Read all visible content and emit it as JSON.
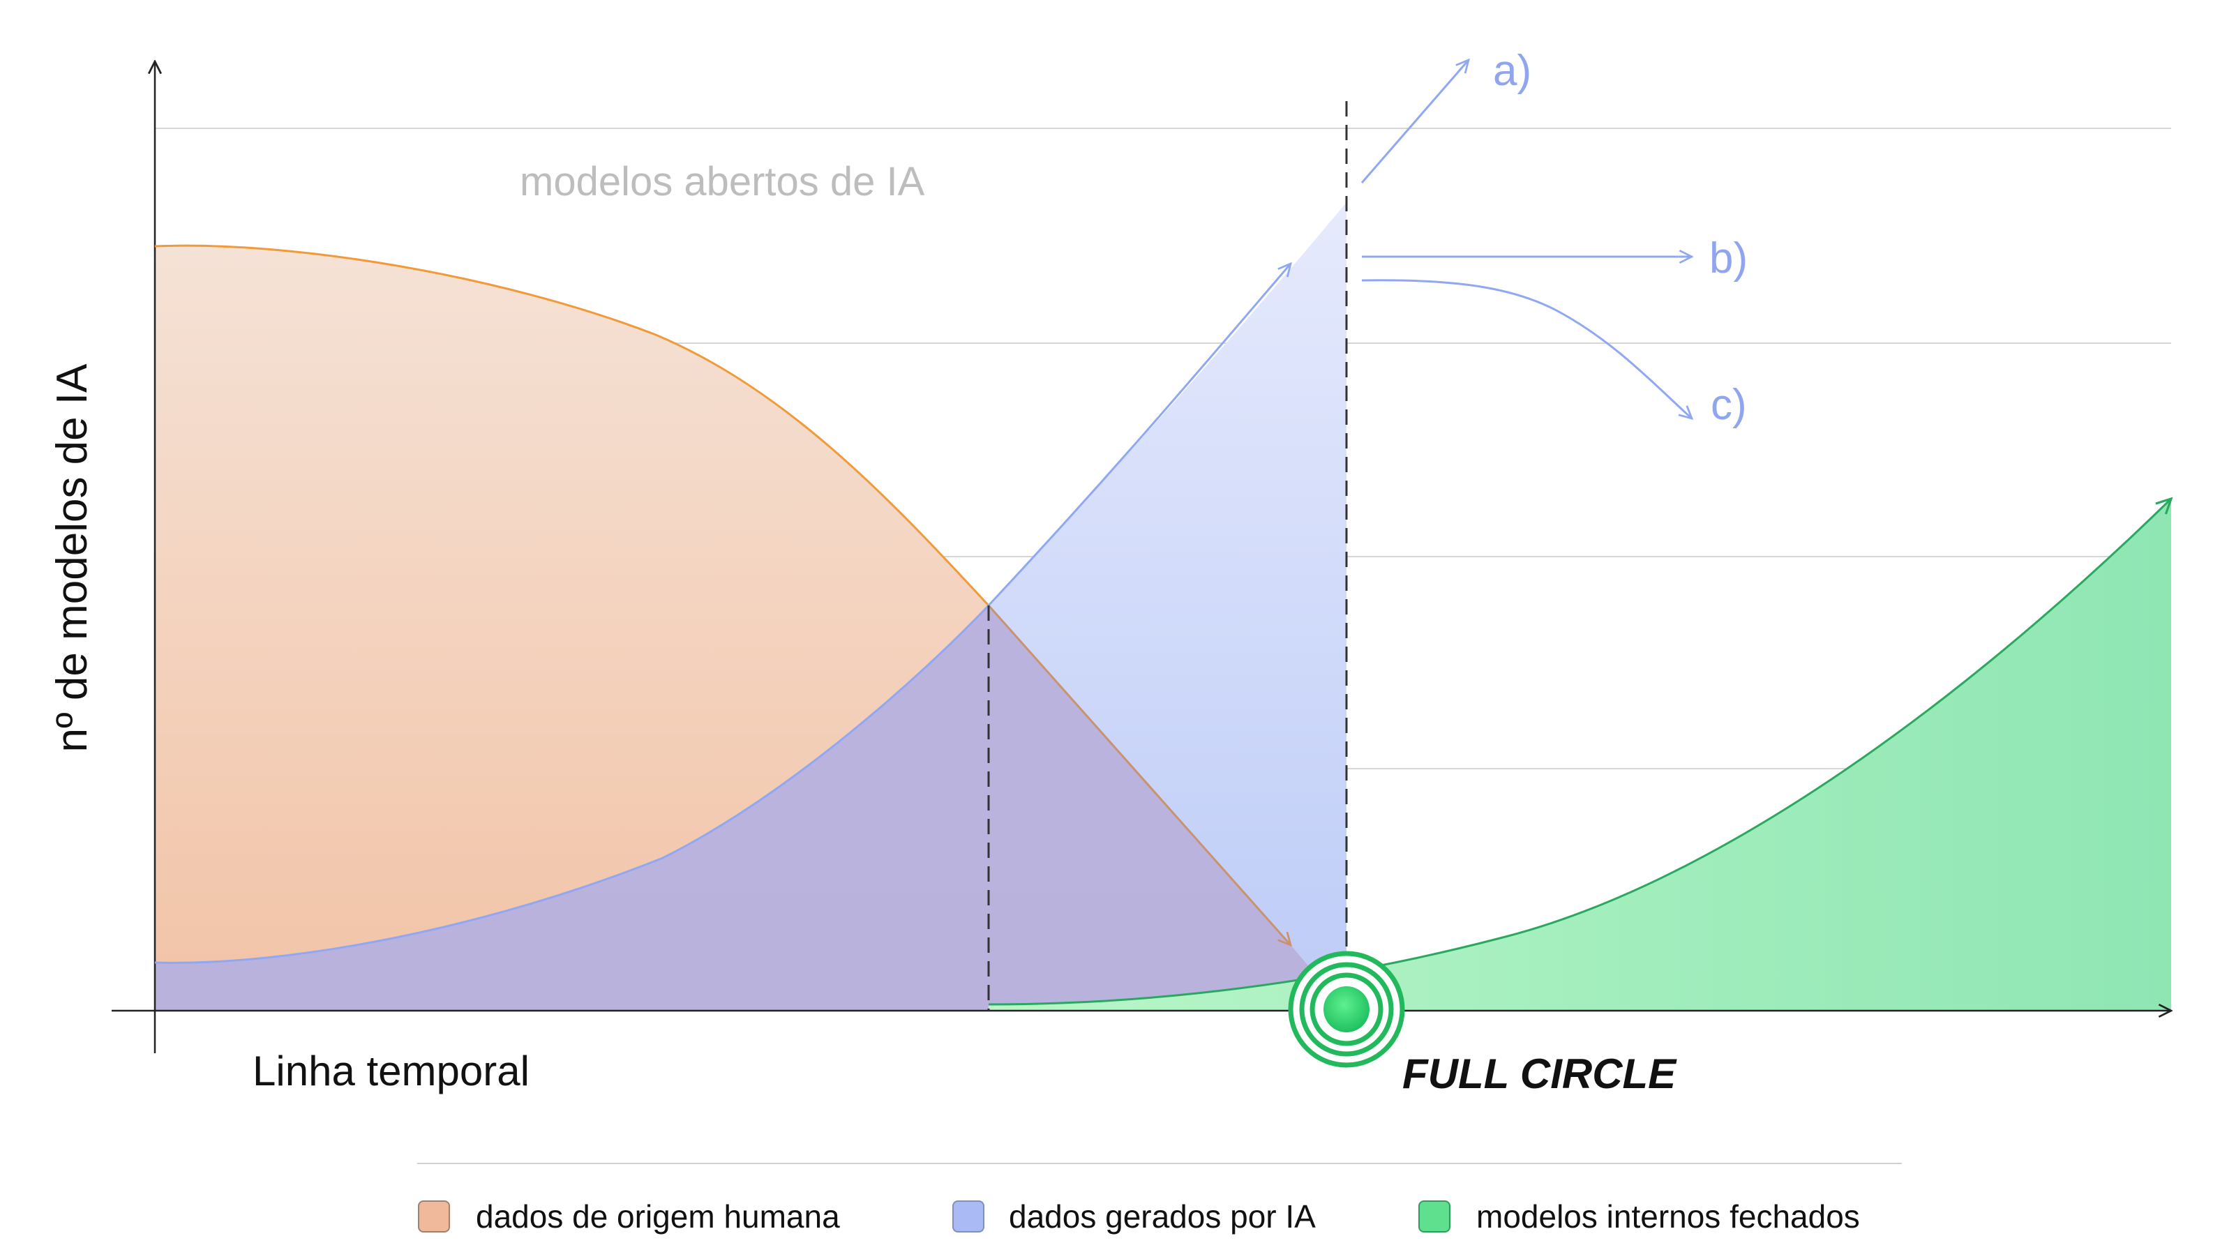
{
  "chart_data": {
    "type": "area",
    "title": "",
    "xlabel": "Linha temporal",
    "ylabel": "nº de modelos de IA",
    "grid": true,
    "legend_position": "bottom",
    "x": [
      0,
      0.1,
      0.2,
      0.3,
      0.4,
      0.5,
      0.6,
      0.7,
      0.8,
      0.9,
      1.0
    ],
    "series": [
      {
        "name": "dados de origem humana",
        "color": "#f0a36a",
        "values": [
          3.6,
          3.56,
          3.42,
          3.1,
          2.55,
          1.9,
          1.0,
          0.3,
          null,
          null,
          null
        ]
      },
      {
        "name": "dados gerados por IA",
        "color": "#90a8f3",
        "values": [
          0.22,
          0.27,
          0.42,
          0.78,
          1.3,
          1.9,
          2.75,
          3.8,
          null,
          null,
          null
        ]
      },
      {
        "name": "modelos internos fechados",
        "color": "#3fcf7f",
        "values": [
          null,
          null,
          null,
          null,
          null,
          0.02,
          0.05,
          0.15,
          0.55,
          1.35,
          2.4
        ]
      }
    ],
    "annotations": {
      "region_label": "modelos abertos de IA",
      "branches": [
        "a)",
        "b)",
        "c)"
      ],
      "event": "FULL CIRCLE"
    },
    "legend": [
      {
        "label": "dados de origem humana",
        "color": "#f1b99c"
      },
      {
        "label": "dados gerados por IA",
        "color": "#a9baf5"
      },
      {
        "label": "modelos internos fechados",
        "color": "#5fe08f"
      }
    ]
  }
}
